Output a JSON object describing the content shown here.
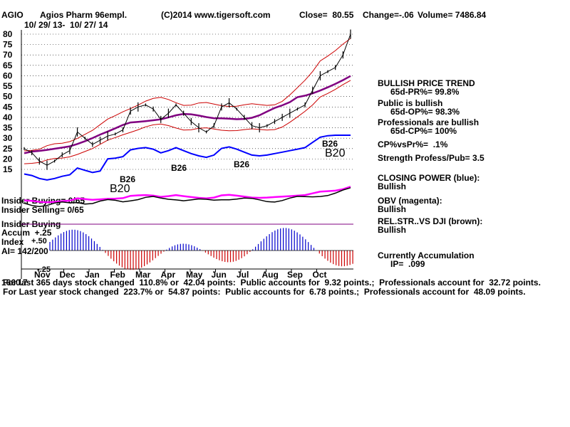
{
  "header": {
    "ticker": "AGIO",
    "company": "Agios Pharm 96empl.",
    "copyright": "(C)2014 www.tigersoft.com",
    "close": "Close=  80.55",
    "change": "Change=-.06",
    "volume": "Volume= 7486.84",
    "dates": "10/ 29/ 13-  10/ 27/ 14"
  },
  "right_panel": {
    "trend_title": "BULLISH PRICE TREND",
    "trend_pr": "65d-PR%= 99.8%",
    "public": "Public is bullish",
    "public_op": "65d-OP%= 98.3%",
    "pros": "Professionals are bullish",
    "pros_cp": "65d-CP%= 100%",
    "cp_vs_pr": "CP%vsPr%=  .1%",
    "strength": "Strength Profess/Pub= 3.5",
    "closing_power": "CLOSING POWER (blue):",
    "closing_power_val": "Bullish",
    "obv": "OBV (magenta):",
    "obv_val": "Bullish",
    "relstr": "REL.STR..VS DJI (brown):",
    "relstr_val": "Bullish",
    "accum": "Currently Accumulation",
    "ip": "IP=  .099"
  },
  "left_labels": {
    "insider_buying_1": "Insider Buying= 0/65",
    "insider_selling": "Insider Selling= 0/65",
    "insider_buying_2": "Insider Buying",
    "accum": "Accum  +.25",
    "index": "Index",
    "ai": "AI= 142/200",
    "plus50": "+.50",
    "minus25": "-.25"
  },
  "footer": {
    "line1": "For last 365 days stock changed  110.8% or  42.04 points:  Public accounts for  9.32 points.;  Professionals account for  32.72 points.",
    "line2": "For Last year stock changed  223.7% or  54.87 points:  Public accounts for  6.78 points.;  Professionals account for  48.09 points.",
    "overlap": "1660.7"
  },
  "annotations": {
    "b26": "B26",
    "b20": "B20"
  },
  "chart_data": {
    "type": "line",
    "ylim": [
      10,
      82
    ],
    "y_ticks": [
      80,
      75,
      70,
      65,
      60,
      55,
      50,
      45,
      40,
      35,
      30,
      25,
      20,
      15
    ],
    "months": [
      "Nov",
      "Dec",
      "Jan",
      "Feb",
      "Mar",
      "Apr",
      "May",
      "Jun",
      "Jul",
      "Aug",
      "Sep",
      "Oct"
    ],
    "price": [
      25,
      23,
      19,
      17,
      19,
      22,
      24,
      33,
      30,
      27,
      29,
      31,
      32,
      34,
      43,
      45,
      46,
      44,
      39,
      42,
      46,
      42,
      38,
      35,
      33,
      36,
      45,
      47,
      44,
      40,
      36,
      35,
      36,
      38,
      40,
      42,
      44,
      46,
      53,
      60,
      62,
      64,
      70,
      80
    ],
    "colors": {
      "closing_power": "#0000ff",
      "obv": "#ff00ff",
      "mid_ma": "#800080",
      "bands": "#cc0000",
      "accum_pos": "#0000cc",
      "accum_neg": "#cc0000"
    }
  }
}
